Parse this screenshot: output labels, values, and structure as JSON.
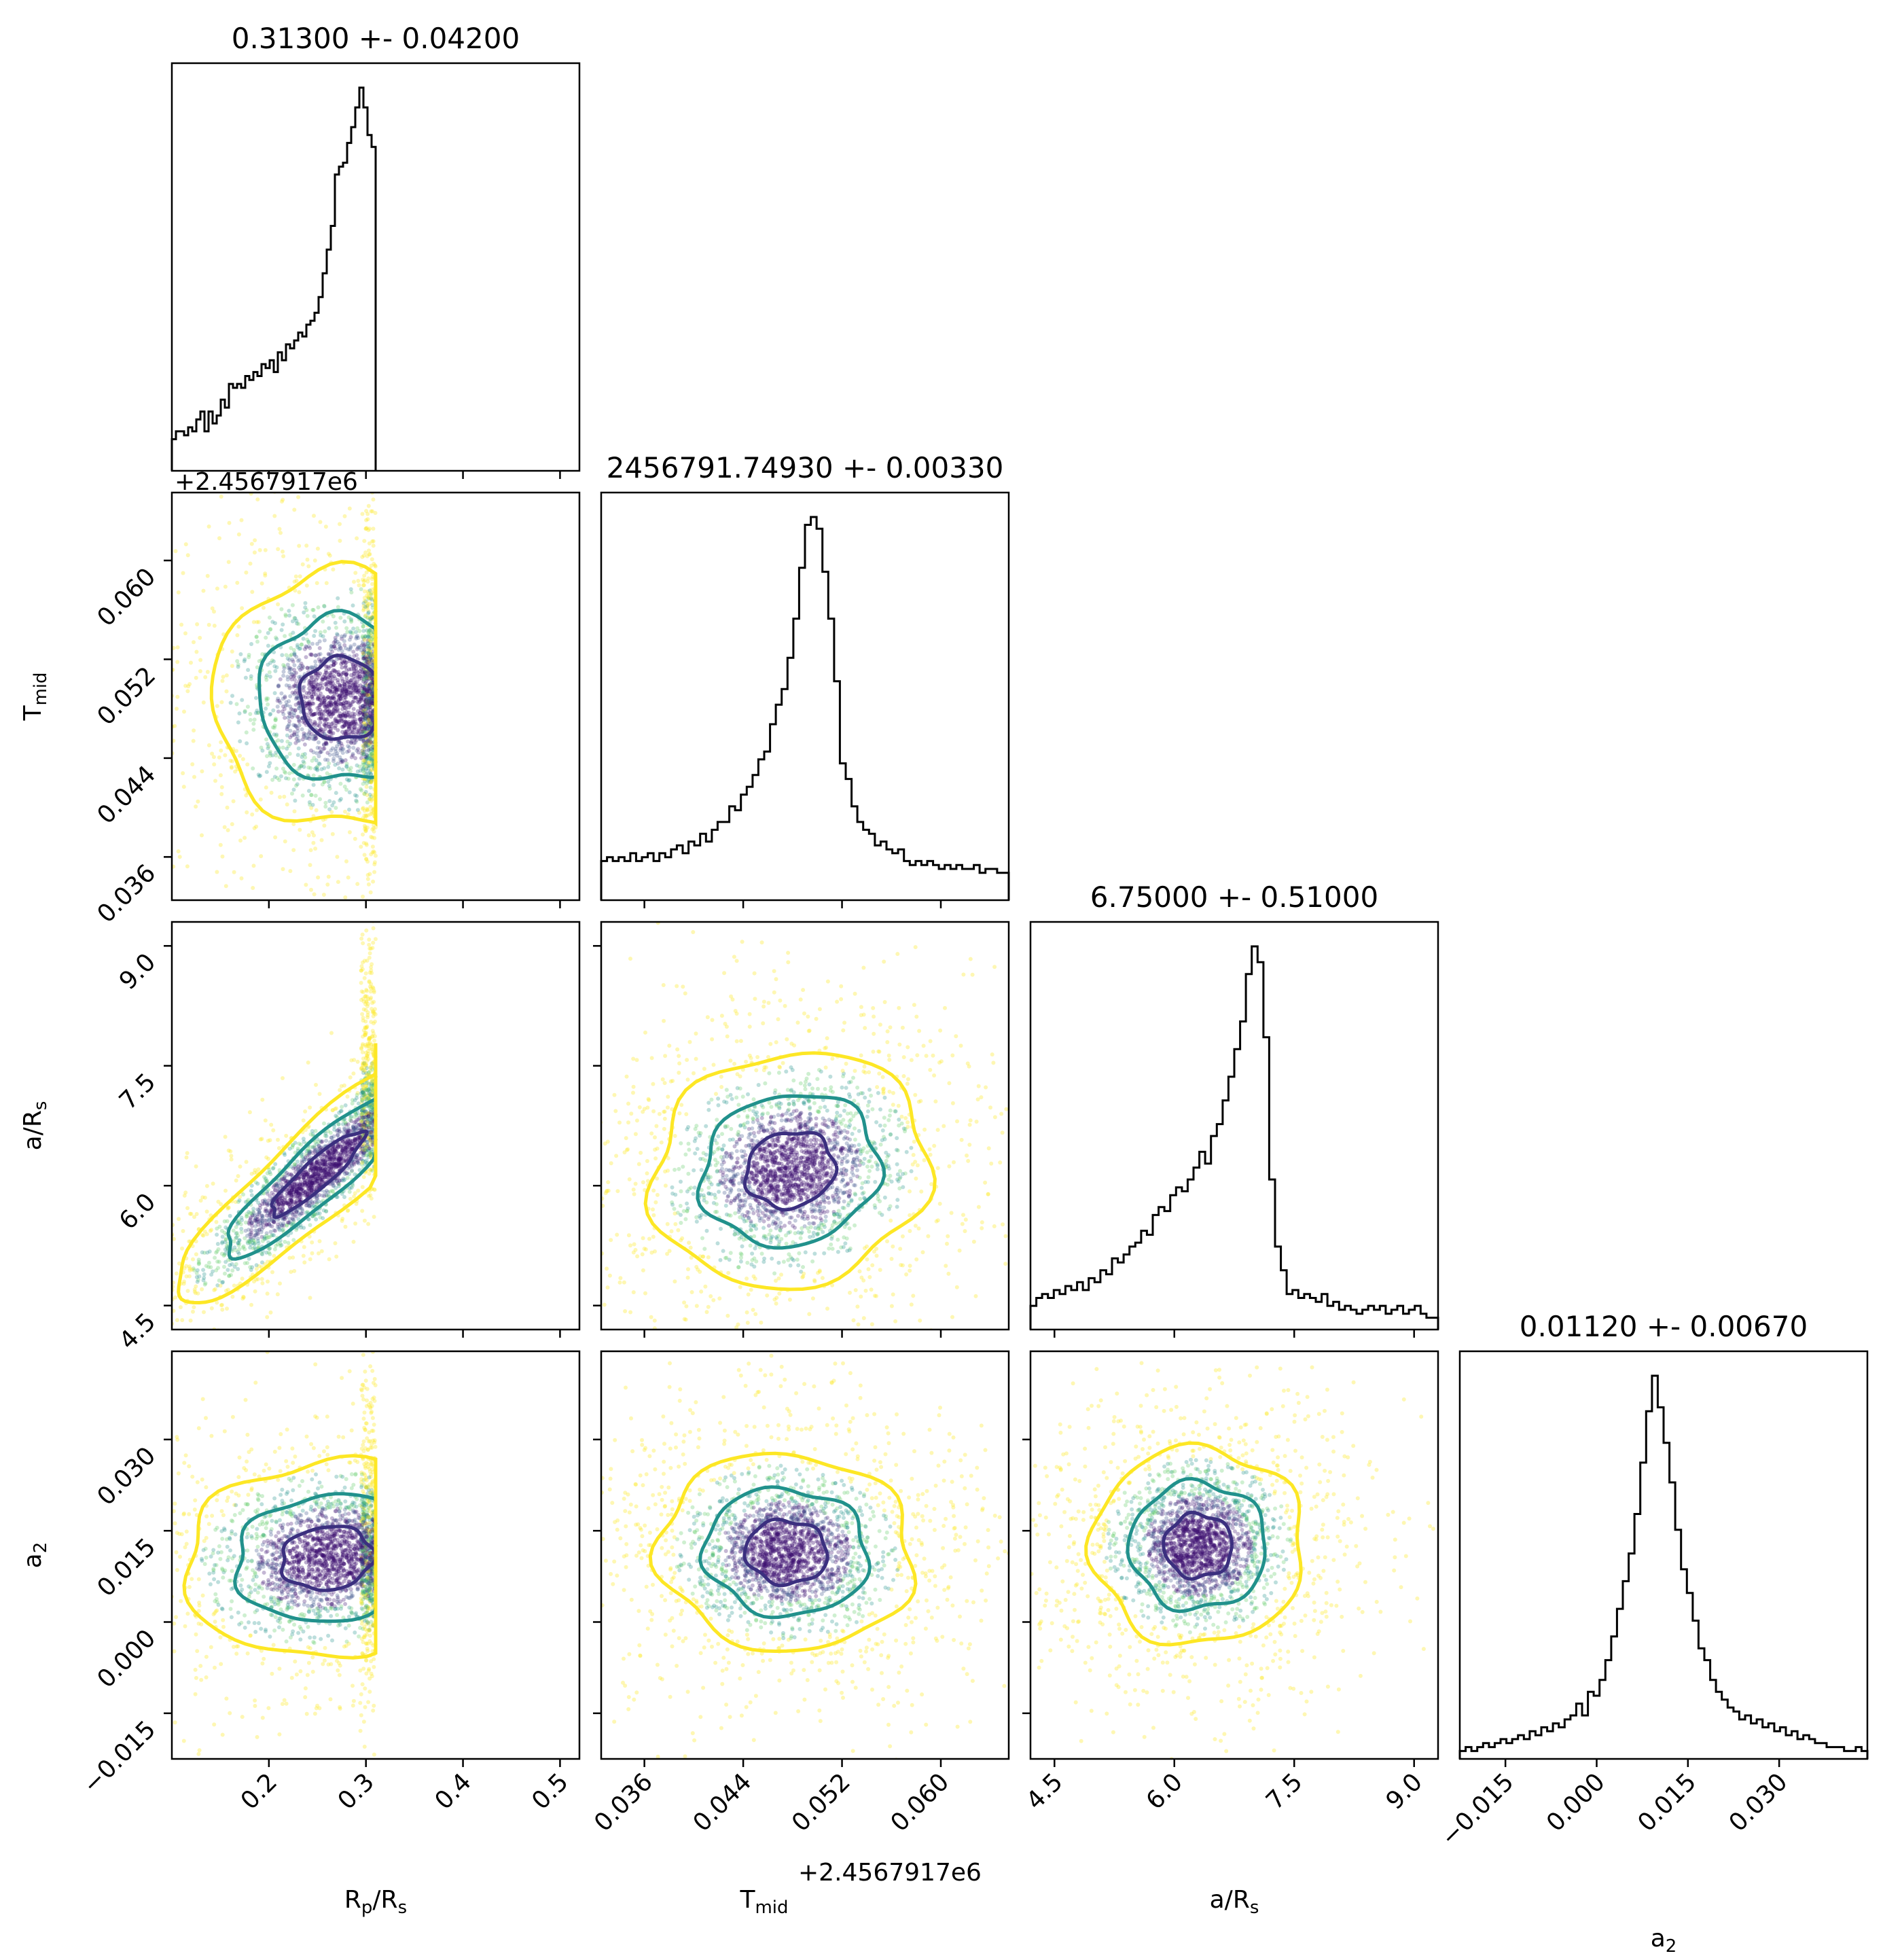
{
  "chart_data": {
    "type": "corner",
    "parameters": [
      {
        "key": "rp",
        "label_main": "R",
        "label_sub": "p",
        "label_tail": "/R",
        "label_tail_sub": "s",
        "title": "0.31300 +- 0.04200",
        "range": [
          0.1,
          0.52
        ],
        "ticks": [
          0.2,
          0.3,
          0.4,
          0.5
        ],
        "tick_labels": [
          "0.2",
          "0.3",
          "0.4",
          "0.5"
        ],
        "offset": ""
      },
      {
        "key": "tmid",
        "label_main": "T",
        "label_sub": "mid",
        "label_tail": "",
        "label_tail_sub": "",
        "title": "2456791.74930 +- 0.00330",
        "range": [
          0.0325,
          0.0655
        ],
        "ticks": [
          0.036,
          0.044,
          0.052,
          0.06
        ],
        "tick_labels": [
          "0.036",
          "0.044",
          "0.052",
          "0.060"
        ],
        "offset": "+2.4567917e6"
      },
      {
        "key": "ars",
        "label_main": "a/R",
        "label_sub": "s",
        "label_tail": "",
        "label_tail_sub": "",
        "title": "6.75000 +- 0.51000",
        "range": [
          4.2,
          9.3
        ],
        "ticks": [
          4.5,
          6.0,
          7.5,
          9.0
        ],
        "tick_labels": [
          "4.5",
          "6.0",
          "7.5",
          "9.0"
        ],
        "offset": ""
      },
      {
        "key": "a2",
        "label_main": "a",
        "label_sub": "2",
        "label_tail": "",
        "label_tail_sub": "",
        "title": "0.01120 +- 0.00670",
        "range": [
          -0.0225,
          0.0445
        ],
        "ticks": [
          -0.015,
          0.0,
          0.015,
          0.03
        ],
        "tick_labels": [
          "−0.015",
          "0.000",
          "0.015",
          "0.030"
        ],
        "offset": ""
      }
    ],
    "histograms": [
      {
        "param": "rp",
        "bin_edges_range": [
          0.1,
          0.31
        ],
        "bins": 50,
        "values": [
          0.08,
          0.1,
          0.1,
          0.09,
          0.11,
          0.1,
          0.13,
          0.15,
          0.1,
          0.15,
          0.12,
          0.14,
          0.18,
          0.16,
          0.22,
          0.21,
          0.22,
          0.21,
          0.24,
          0.23,
          0.25,
          0.24,
          0.27,
          0.26,
          0.28,
          0.25,
          0.3,
          0.28,
          0.32,
          0.31,
          0.33,
          0.35,
          0.34,
          0.37,
          0.38,
          0.4,
          0.44,
          0.5,
          0.56,
          0.62,
          0.75,
          0.77,
          0.78,
          0.83,
          0.87,
          0.92,
          0.97,
          0.92,
          0.85,
          0.82
        ]
      },
      {
        "param": "tmid",
        "bin_edges_range": [
          0.0325,
          0.0655
        ],
        "bins": 70,
        "values": [
          0.1,
          0.11,
          0.1,
          0.11,
          0.1,
          0.12,
          0.1,
          0.11,
          0.12,
          0.1,
          0.12,
          0.11,
          0.13,
          0.14,
          0.12,
          0.15,
          0.14,
          0.17,
          0.15,
          0.18,
          0.2,
          0.2,
          0.24,
          0.23,
          0.27,
          0.29,
          0.32,
          0.36,
          0.38,
          0.45,
          0.5,
          0.54,
          0.62,
          0.72,
          0.85,
          0.96,
          0.98,
          0.95,
          0.84,
          0.72,
          0.56,
          0.35,
          0.31,
          0.24,
          0.2,
          0.18,
          0.17,
          0.14,
          0.15,
          0.13,
          0.12,
          0.13,
          0.1,
          0.09,
          0.1,
          0.09,
          0.1,
          0.09,
          0.08,
          0.09,
          0.08,
          0.09,
          0.08,
          0.08,
          0.09,
          0.07,
          0.08,
          0.08,
          0.07,
          0.07
        ]
      },
      {
        "param": "ars",
        "bin_edges_range": [
          4.2,
          9.3
        ],
        "bins": 70,
        "values": [
          0.06,
          0.08,
          0.09,
          0.08,
          0.1,
          0.09,
          0.11,
          0.1,
          0.12,
          0.1,
          0.13,
          0.12,
          0.15,
          0.14,
          0.18,
          0.17,
          0.19,
          0.21,
          0.22,
          0.25,
          0.24,
          0.29,
          0.31,
          0.3,
          0.34,
          0.36,
          0.35,
          0.38,
          0.41,
          0.45,
          0.42,
          0.49,
          0.52,
          0.58,
          0.64,
          0.71,
          0.78,
          0.9,
          0.97,
          0.93,
          0.74,
          0.38,
          0.21,
          0.15,
          0.09,
          0.1,
          0.08,
          0.09,
          0.08,
          0.07,
          0.09,
          0.06,
          0.07,
          0.05,
          0.06,
          0.05,
          0.04,
          0.05,
          0.06,
          0.05,
          0.06,
          0.04,
          0.05,
          0.06,
          0.04,
          0.05,
          0.06,
          0.04,
          0.03,
          0.03
        ]
      },
      {
        "param": "a2",
        "bin_edges_range": [
          -0.0225,
          0.0445
        ],
        "bins": 70,
        "values": [
          0.02,
          0.03,
          0.02,
          0.03,
          0.04,
          0.03,
          0.04,
          0.05,
          0.04,
          0.05,
          0.06,
          0.05,
          0.07,
          0.06,
          0.08,
          0.07,
          0.09,
          0.08,
          0.1,
          0.11,
          0.14,
          0.11,
          0.17,
          0.16,
          0.2,
          0.25,
          0.31,
          0.38,
          0.45,
          0.52,
          0.62,
          0.75,
          0.88,
          0.97,
          0.89,
          0.8,
          0.7,
          0.58,
          0.48,
          0.42,
          0.35,
          0.28,
          0.25,
          0.2,
          0.17,
          0.15,
          0.13,
          0.12,
          0.1,
          0.11,
          0.09,
          0.1,
          0.08,
          0.09,
          0.07,
          0.08,
          0.06,
          0.07,
          0.05,
          0.06,
          0.05,
          0.04,
          0.04,
          0.03,
          0.03,
          0.03,
          0.02,
          0.02,
          0.03,
          0.02
        ]
      }
    ],
    "pairs": [
      {
        "x": "rp",
        "y": "tmid",
        "mean": [
          0.275,
          0.0488
        ],
        "sd": [
          0.045,
          0.0035
        ],
        "rho": 0.0,
        "x_cut": 0.31
      },
      {
        "x": "rp",
        "y": "ars",
        "mean": [
          0.25,
          6.15
        ],
        "sd": [
          0.05,
          0.55
        ],
        "rho": 0.9,
        "x_cut": 0.31
      },
      {
        "x": "rp",
        "y": "a2",
        "mean": [
          0.26,
          0.0105
        ],
        "sd": [
          0.05,
          0.0055
        ],
        "rho": 0.1,
        "x_cut": 0.31
      },
      {
        "x": "tmid",
        "y": "ars",
        "mean": [
          0.0478,
          6.2
        ],
        "sd": [
          0.0038,
          0.5
        ],
        "rho": 0.1,
        "x_cut": null
      },
      {
        "x": "tmid",
        "y": "a2",
        "mean": [
          0.0475,
          0.0115
        ],
        "sd": [
          0.0035,
          0.0055
        ],
        "rho": -0.05,
        "x_cut": null
      },
      {
        "x": "ars",
        "y": "a2",
        "mean": [
          6.3,
          0.0125
        ],
        "sd": [
          0.45,
          0.0055
        ],
        "rho": 0.0,
        "x_cut": null
      }
    ],
    "contour_levels": [
      "1-sigma",
      "2-sigma",
      "3-sigma"
    ],
    "colors": {
      "inner": "#3b2f7f",
      "middle": "#21918c",
      "outer": "#fde725",
      "point_dark": "#3b0f70",
      "hist": "#000000"
    }
  }
}
